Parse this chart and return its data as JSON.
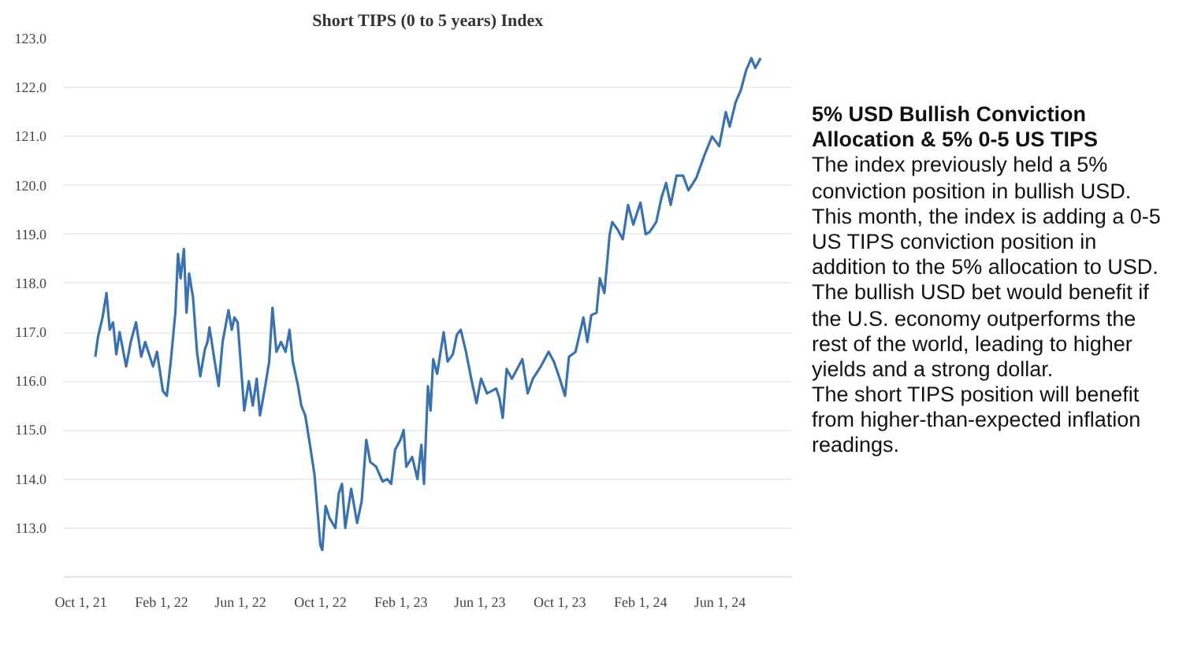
{
  "chart_data": {
    "type": "line",
    "title": "Short TIPS (0 to 5 years) Index",
    "annotations": [
      "5% USD Bullish Conviction Allocation & 5% 0-5 US TIPS",
      "The index previously held a 5% conviction position in bullish USD. This month, the index is adding a 0-5 US TIPS conviction position in addition to the 5% allocation to USD.",
      "The bullish USD bet would benefit if the U.S. economy outperforms the rest of the world, leading to higher yields and a strong dollar.",
      "The short TIPS position will benefit from higher-than-expected inflation readings."
    ],
    "grid": "y",
    "marker": "none",
    "line_style": "solid",
    "xlim": [
      "2021-09-05",
      "2024-09-19"
    ],
    "xticks": [
      {
        "value": "2021-10-01",
        "label": "Oct 1, 21"
      },
      {
        "value": "2022-02-01",
        "label": "Feb 1, 22"
      },
      {
        "value": "2022-06-01",
        "label": "Jun 1, 22"
      },
      {
        "value": "2022-10-01",
        "label": "Oct 1, 22"
      },
      {
        "value": "2023-02-01",
        "label": "Feb 1, 23"
      },
      {
        "value": "2023-06-01",
        "label": "Jun 1, 23"
      },
      {
        "value": "2023-10-01",
        "label": "Oct 1, 23"
      },
      {
        "value": "2024-02-01",
        "label": "Feb 1, 24"
      },
      {
        "value": "2024-06-01",
        "label": "Jun 1, 24"
      }
    ],
    "ylim": [
      112.0,
      123.0
    ],
    "yticks": [
      {
        "value": 113,
        "label": "113.0"
      },
      {
        "value": 114,
        "label": "114.0"
      },
      {
        "value": 115,
        "label": "115.0"
      },
      {
        "value": 116,
        "label": "116.0"
      },
      {
        "value": 117,
        "label": "117.0"
      },
      {
        "value": 118,
        "label": "118.0"
      },
      {
        "value": 119,
        "label": "119.0"
      },
      {
        "value": 120,
        "label": "120.0"
      },
      {
        "value": 121,
        "label": "121.0"
      },
      {
        "value": 122,
        "label": "122.0"
      },
      {
        "value": 123,
        "label": "123.0"
      }
    ],
    "x": [
      "2021-10-23",
      "2021-10-27",
      "2021-11-03",
      "2021-11-09",
      "2021-11-14",
      "2021-11-19",
      "2021-11-24",
      "2021-11-29",
      "2021-12-09",
      "2021-12-16",
      "2021-12-24",
      "2022-01-01",
      "2022-01-07",
      "2022-01-19",
      "2022-01-25",
      "2022-02-03",
      "2022-02-09",
      "2022-02-15",
      "2022-02-22",
      "2022-02-26",
      "2022-03-02",
      "2022-03-07",
      "2022-03-11",
      "2022-03-15",
      "2022-03-21",
      "2022-03-27",
      "2022-04-01",
      "2022-04-08",
      "2022-04-12",
      "2022-04-15",
      "2022-04-23",
      "2022-04-29",
      "2022-05-05",
      "2022-05-14",
      "2022-05-19",
      "2022-05-23",
      "2022-05-28",
      "2022-06-07",
      "2022-06-14",
      "2022-06-20",
      "2022-06-26",
      "2022-07-01",
      "2022-07-09",
      "2022-07-15",
      "2022-07-20",
      "2022-07-26",
      "2022-08-02",
      "2022-08-09",
      "2022-08-15",
      "2022-08-20",
      "2022-08-28",
      "2022-09-02",
      "2022-09-08",
      "2022-09-14",
      "2022-09-22",
      "2022-09-27",
      "2022-10-01",
      "2022-10-04",
      "2022-10-09",
      "2022-10-15",
      "2022-10-24",
      "2022-10-29",
      "2022-11-03",
      "2022-11-08",
      "2022-11-17",
      "2022-11-26",
      "2022-12-03",
      "2022-12-10",
      "2022-12-16",
      "2022-12-25",
      "2023-01-04",
      "2023-01-11",
      "2023-01-17",
      "2023-01-23",
      "2023-01-31",
      "2023-02-05",
      "2023-02-09",
      "2023-02-18",
      "2023-02-26",
      "2023-03-04",
      "2023-03-08",
      "2023-03-14",
      "2023-03-18",
      "2023-03-22",
      "2023-03-28",
      "2023-04-07",
      "2023-04-13",
      "2023-04-21",
      "2023-04-27",
      "2023-05-03",
      "2023-05-11",
      "2023-05-19",
      "2023-05-27",
      "2023-06-03",
      "2023-06-12",
      "2023-06-26",
      "2023-07-01",
      "2023-07-06",
      "2023-07-12",
      "2023-07-20",
      "2023-07-28",
      "2023-08-05",
      "2023-08-13",
      "2023-08-21",
      "2023-09-02",
      "2023-09-14",
      "2023-09-22",
      "2023-10-01",
      "2023-10-09",
      "2023-10-15",
      "2023-10-25",
      "2023-11-06",
      "2023-11-12",
      "2023-11-18",
      "2023-11-26",
      "2023-12-01",
      "2023-12-08",
      "2023-12-16",
      "2023-12-20",
      "2023-12-28",
      "2024-01-05",
      "2024-01-13",
      "2024-01-21",
      "2024-02-01",
      "2024-02-09",
      "2024-02-15",
      "2024-02-25",
      "2024-03-04",
      "2024-03-11",
      "2024-03-18",
      "2024-03-27",
      "2024-04-06",
      "2024-04-14",
      "2024-04-26",
      "2024-05-08",
      "2024-05-20",
      "2024-05-31",
      "2024-06-10",
      "2024-06-16",
      "2024-06-25",
      "2024-07-03",
      "2024-07-11",
      "2024-07-19",
      "2024-07-25",
      "2024-08-02"
    ],
    "series": [
      {
        "color": "#3a72b0",
        "values": [
          116.5,
          116.9,
          117.3,
          117.8,
          117.05,
          117.2,
          116.55,
          117.0,
          116.3,
          116.8,
          117.2,
          116.5,
          116.8,
          116.3,
          116.6,
          115.8,
          115.7,
          116.4,
          117.4,
          118.6,
          118.1,
          118.7,
          117.4,
          118.2,
          117.7,
          116.6,
          116.1,
          116.65,
          116.8,
          117.1,
          116.4,
          115.9,
          116.8,
          117.45,
          117.05,
          117.3,
          117.2,
          115.4,
          116.0,
          115.5,
          116.05,
          115.3,
          115.9,
          116.4,
          117.5,
          116.6,
          116.8,
          116.6,
          117.05,
          116.4,
          115.9,
          115.5,
          115.3,
          114.8,
          114.1,
          113.3,
          112.65,
          112.55,
          113.45,
          113.2,
          113.0,
          113.7,
          113.9,
          113.0,
          113.8,
          113.1,
          113.55,
          114.8,
          114.35,
          114.25,
          113.95,
          114.0,
          113.9,
          114.6,
          114.8,
          115.0,
          114.25,
          114.45,
          114.0,
          114.7,
          113.9,
          115.9,
          115.4,
          116.45,
          116.15,
          117.0,
          116.4,
          116.55,
          116.95,
          117.05,
          116.6,
          116.05,
          115.55,
          116.05,
          115.75,
          115.85,
          115.65,
          115.25,
          116.25,
          116.05,
          116.25,
          116.45,
          115.75,
          116.05,
          116.3,
          116.6,
          116.4,
          116.05,
          115.7,
          116.5,
          116.6,
          117.3,
          116.8,
          117.35,
          117.4,
          118.1,
          117.8,
          119.0,
          119.25,
          119.1,
          118.9,
          119.6,
          119.2,
          119.65,
          119.0,
          119.05,
          119.25,
          119.75,
          120.05,
          119.6,
          120.2,
          120.2,
          119.9,
          120.15,
          120.6,
          121.0,
          120.8,
          121.5,
          121.2,
          121.7,
          121.95,
          122.35,
          122.6,
          122.4,
          122.6
        ]
      }
    ]
  }
}
